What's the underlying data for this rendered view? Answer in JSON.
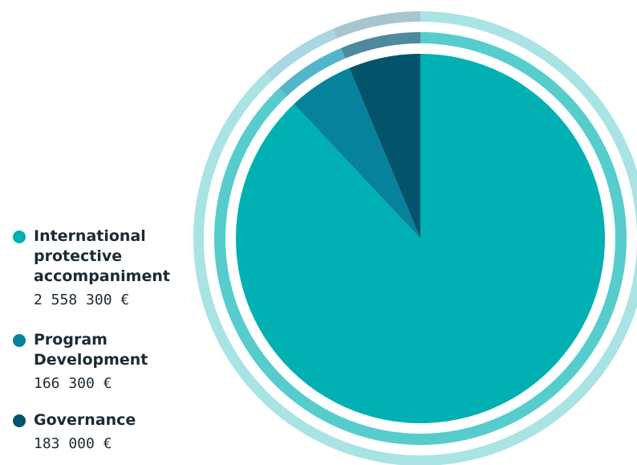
{
  "chart_data": {
    "type": "pie",
    "slices": [
      {
        "label": "International protective accompaniment",
        "value": 2558300,
        "value_text": "2 558 300 €",
        "color": "#00b0b2"
      },
      {
        "label": "Program Development",
        "value": 166300,
        "value_text": "166 300 €",
        "color": "#06829c"
      },
      {
        "label": "Governance",
        "value": 183000,
        "value_text": "183 000 €",
        "color": "#03546a"
      }
    ],
    "legend": {
      "position": "left"
    }
  },
  "rings": {
    "outer": {
      "colors": [
        "#a9e3e4",
        "#a9d8e3",
        "#a8c5cd"
      ]
    },
    "middle": {
      "colors": [
        "#56cccd",
        "#53b5ca",
        "#4e8a9d"
      ]
    }
  },
  "legend": {
    "items": [
      {
        "label": "International\nprotective\naccompaniment",
        "value": "2 558 300 €"
      },
      {
        "label": "Program\nDevelopment",
        "value": "166 300 €"
      },
      {
        "label": "Governance",
        "value": "183 000 €"
      }
    ]
  }
}
